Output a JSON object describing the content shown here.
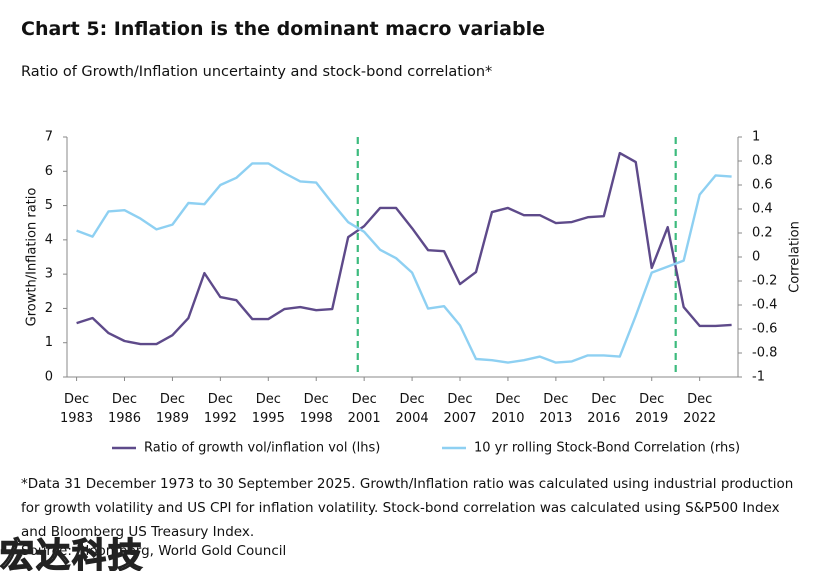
{
  "chart_data": {
    "type": "line",
    "title": "Chart 5: Inflation is the dominant macro variable",
    "subtitle": "Ratio of Growth/Inflation uncertainty and stock-bond correlation*",
    "ylabel": "Growth/Inflation ratio",
    "y2label": "Correlation",
    "x": [
      1983,
      1984,
      1985,
      1986,
      1987,
      1988,
      1989,
      1990,
      1991,
      1992,
      1993,
      1994,
      1995,
      1996,
      1997,
      1998,
      1999,
      2000,
      2001,
      2002,
      2003,
      2004,
      2005,
      2006,
      2007,
      2008,
      2009,
      2010,
      2011,
      2012,
      2013,
      2014,
      2015,
      2016,
      2017,
      2018,
      2019,
      2020,
      2021,
      2022,
      2023,
      2024
    ],
    "xlim": [
      1982.4,
      2024.4
    ],
    "xticks": [
      {
        "value": 1983,
        "label": "Dec 1983"
      },
      {
        "value": 1986,
        "label": "Dec 1986"
      },
      {
        "value": 1989,
        "label": "Dec 1989"
      },
      {
        "value": 1992,
        "label": "Dec 1992"
      },
      {
        "value": 1995,
        "label": "Dec 1995"
      },
      {
        "value": 1998,
        "label": "Dec 1998"
      },
      {
        "value": 2001,
        "label": "Dec 2001"
      },
      {
        "value": 2004,
        "label": "Dec 2004"
      },
      {
        "value": 2007,
        "label": "Dec 2007"
      },
      {
        "value": 2010,
        "label": "Dec 2010"
      },
      {
        "value": 2013,
        "label": "Dec 2013"
      },
      {
        "value": 2016,
        "label": "Dec 2016"
      },
      {
        "value": 2019,
        "label": "Dec 2019"
      },
      {
        "value": 2022,
        "label": "Dec 2022"
      }
    ],
    "ylim": [
      0,
      7
    ],
    "yticks": [
      0,
      1,
      2,
      3,
      4,
      5,
      6,
      7
    ],
    "y2lim": [
      -1,
      1
    ],
    "y2ticks": [
      -1,
      -0.8,
      -0.6,
      -0.4,
      -0.2,
      0,
      0.2,
      0.4,
      0.6,
      0.8,
      1
    ],
    "vlines": [
      2000.6,
      2020.5
    ],
    "vline_color": "#3dbb7e",
    "series": [
      {
        "name": "Ratio of growth vol/inflation vol (lhs)",
        "color": "#5e4a8a",
        "values": [
          1.57,
          1.72,
          1.28,
          1.05,
          0.96,
          0.96,
          1.22,
          1.72,
          3.03,
          2.33,
          2.24,
          1.69,
          1.69,
          1.98,
          2.04,
          1.95,
          1.98,
          4.08,
          4.4,
          4.93,
          4.93,
          4.34,
          3.7,
          3.67,
          2.71,
          3.06,
          4.81,
          4.93,
          4.72,
          4.72,
          4.49,
          4.52,
          4.66,
          4.69,
          6.53,
          6.27,
          3.18,
          4.37,
          2.04,
          1.49,
          1.49,
          1.52
        ]
      },
      {
        "name": "10 yr rolling Stock-Bond Correlation (rhs)",
        "color": "#8ed0f2",
        "axis": "y2",
        "values": [
          0.22,
          0.17,
          0.38,
          0.39,
          0.32,
          0.23,
          0.27,
          0.45,
          0.44,
          0.6,
          0.66,
          0.78,
          0.78,
          0.7,
          0.63,
          0.62,
          0.45,
          0.29,
          0.21,
          0.06,
          -0.01,
          -0.13,
          -0.43,
          -0.41,
          -0.57,
          -0.85,
          -0.86,
          -0.88,
          -0.86,
          -0.83,
          -0.88,
          -0.87,
          -0.82,
          -0.82,
          -0.83,
          -0.49,
          -0.13,
          -0.08,
          -0.03,
          0.52,
          0.68,
          0.67
        ]
      }
    ]
  },
  "footnote": "*Data 31 December 1973 to 30 September 2025. Growth/Inflation ratio was calculated using industrial production for growth volatility and US CPI for inflation volatility. Stock-bond correlation was calculated using S&P500 Index and Bloomberg US Treasury Index.",
  "source": "Source: Bloomberg, World Gold Council",
  "watermark": "宏达科技"
}
